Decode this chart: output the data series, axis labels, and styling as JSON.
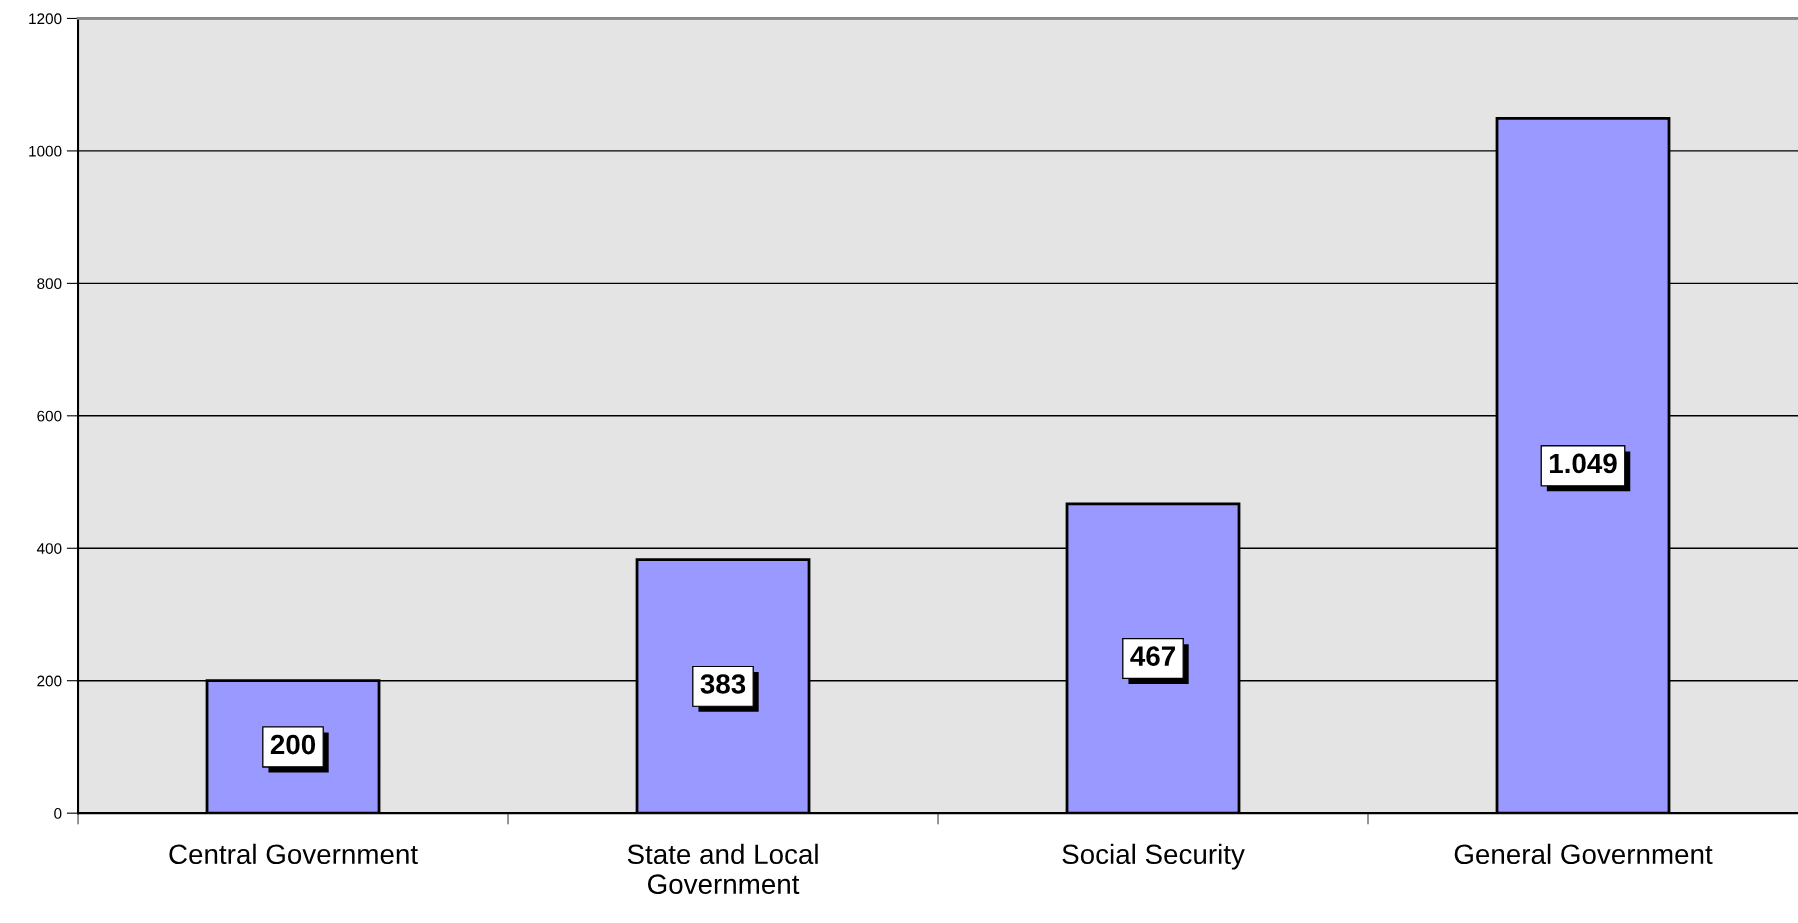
{
  "chart_data": {
    "type": "bar",
    "categories": [
      "Central Government",
      "State and Local\nGovernment",
      "Social Security",
      "General Government"
    ],
    "values": [
      200,
      383,
      467,
      1049
    ],
    "value_labels": [
      "200",
      "383",
      "467",
      "1.049"
    ],
    "color": "#9999ff",
    "ylim": [
      0,
      1200
    ],
    "yticks": [
      0,
      200,
      400,
      600,
      800,
      1000,
      1200
    ],
    "grid": "y"
  }
}
